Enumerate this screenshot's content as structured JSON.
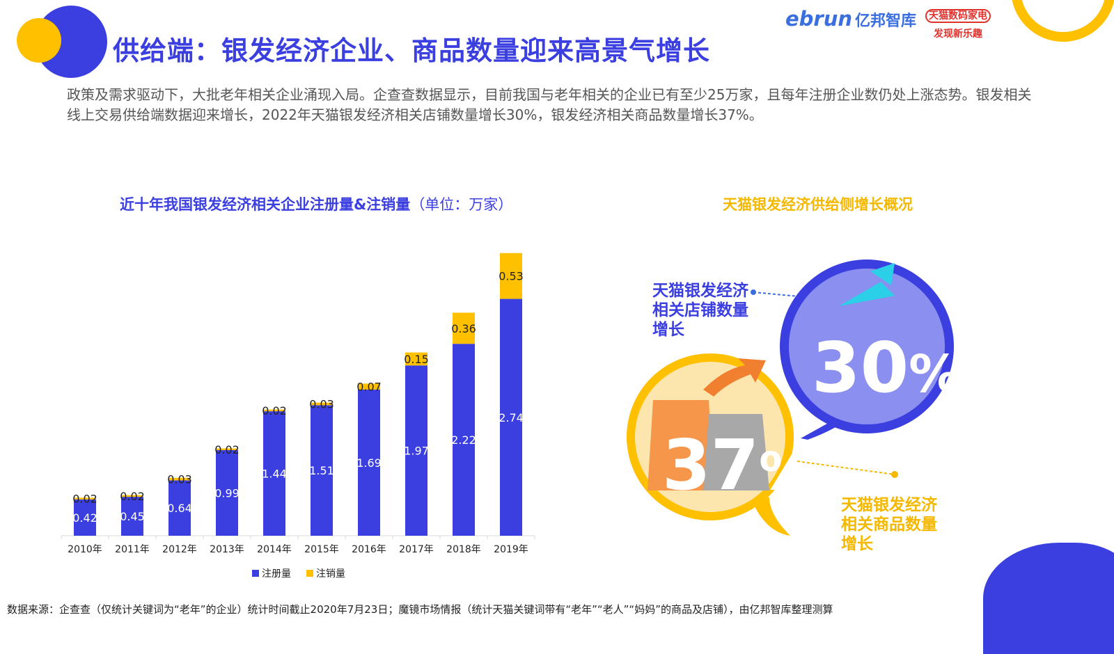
{
  "header": {
    "title": "供给端：银发经济企业、商品数量迎来高景气增长",
    "brand_latin": "ebrun",
    "brand_cn": "亿邦智库",
    "tmall_line1": "天猫数码家电",
    "tmall_line2": "发现新乐趣"
  },
  "intro": "政策及需求驱动下，大批老年相关企业涌现入局。企查查数据显示，目前我国与老年相关的企业已有至少25万家，且每年注册企业数仍处上涨态势。银发相关线上交易供给端数据迎来增长，2022年天猫银发经济相关店铺数量增长30%，银发经济相关商品数量增长37%。",
  "left_chart": {
    "title_main": "近十年我国银发经济相关企业注册量&注销量",
    "title_unit": "（单位：万家）"
  },
  "right_panel": {
    "title": "天猫银发经济供给侧增长概况",
    "store_line1": "天猫银发经济",
    "store_line2": "相关店铺数量",
    "store_line3": "增长",
    "store_pct_num": "30",
    "store_pct_sign": "%",
    "goods_line1": "天猫银发经济",
    "goods_line2": "相关商品数量",
    "goods_line3": "增长",
    "goods_pct_num": "37",
    "goods_pct_sign": "%"
  },
  "source": "数据来源：企查查（仅统计关键词为“老年”的企业）统计时间截止2020年7月23日；魔镜市场情报（统计天猫关键词带有“老年”“老人”“妈妈”的商品及店铺），由亿邦智库整理测算",
  "colors": {
    "primary_blue": "#3b3fe0",
    "accent_yellow": "#ffc000",
    "title_yellow": "#f5b800"
  },
  "chart_data": {
    "type": "bar",
    "stacked": true,
    "categories": [
      "2010年",
      "2011年",
      "2012年",
      "2013年",
      "2014年",
      "2015年",
      "2016年",
      "2017年",
      "2018年",
      "2019年"
    ],
    "series": [
      {
        "name": "注册量",
        "color": "#3b3fe0",
        "values": [
          0.42,
          0.45,
          0.64,
          0.99,
          1.44,
          1.51,
          1.69,
          1.97,
          2.22,
          2.74
        ]
      },
      {
        "name": "注销量",
        "color": "#ffc000",
        "values": [
          0.02,
          0.02,
          0.03,
          0.02,
          0.02,
          0.03,
          0.07,
          0.15,
          0.36,
          0.53
        ]
      }
    ],
    "data_labels": true,
    "legend_position": "bottom",
    "ylim": [
      0,
      3.3
    ]
  }
}
